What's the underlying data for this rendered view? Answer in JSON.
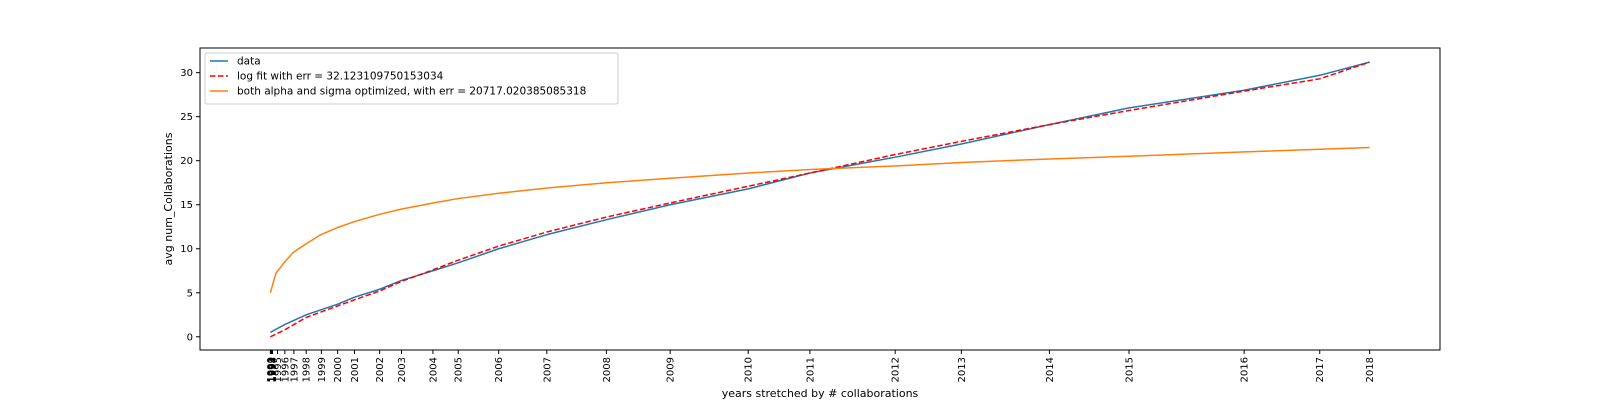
{
  "chart_data": {
    "type": "line",
    "xlabel": "years stretched by # collaborations",
    "ylabel": "avg num_Collaborations",
    "ylim": [
      -1.5,
      32.8
    ],
    "yticks": [
      0,
      5,
      10,
      15,
      20,
      25,
      30
    ],
    "xlim": [
      -0.064,
      1.064
    ],
    "grid": false,
    "legend_position": "top-left",
    "x_ticks": [
      {
        "label": "1990",
        "x": 0.0
      },
      {
        "label": "1991",
        "x": 0.0005
      },
      {
        "label": "1992",
        "x": 0.001
      },
      {
        "label": "1993",
        "x": 0.0015
      },
      {
        "label": "1994",
        "x": 0.002
      },
      {
        "label": "1995",
        "x": 0.0065
      },
      {
        "label": "1996",
        "x": 0.0132
      },
      {
        "label": "1997",
        "x": 0.0214
      },
      {
        "label": "1998",
        "x": 0.0326
      },
      {
        "label": "1999",
        "x": 0.0464
      },
      {
        "label": "2000",
        "x": 0.0612
      },
      {
        "label": "2001",
        "x": 0.0765
      },
      {
        "label": "2002",
        "x": 0.0994
      },
      {
        "label": "2003",
        "x": 0.1193
      },
      {
        "label": "2004",
        "x": 0.1479
      },
      {
        "label": "2005",
        "x": 0.1709
      },
      {
        "label": "2006",
        "x": 0.2077
      },
      {
        "label": "2007",
        "x": 0.2515
      },
      {
        "label": "2008",
        "x": 0.3057
      },
      {
        "label": "2009",
        "x": 0.3637
      },
      {
        "label": "2010",
        "x": 0.4347
      },
      {
        "label": "2011",
        "x": 0.4908
      },
      {
        "label": "2012",
        "x": 0.5684
      },
      {
        "label": "2013",
        "x": 0.6286
      },
      {
        "label": "2014",
        "x": 0.7087
      },
      {
        "label": "2015",
        "x": 0.7811
      },
      {
        "label": "2016",
        "x": 0.8858
      },
      {
        "label": "2017",
        "x": 0.9546
      },
      {
        "label": "2018",
        "x": 1.0
      }
    ],
    "series": [
      {
        "name": "data",
        "color": "#1f77b4",
        "style": "solid",
        "points": [
          [
            0.0,
            0.5
          ],
          [
            0.0132,
            1.4
          ],
          [
            0.0326,
            2.5
          ],
          [
            0.0612,
            3.7
          ],
          [
            0.0765,
            4.5
          ],
          [
            0.0994,
            5.4
          ],
          [
            0.1193,
            6.4
          ],
          [
            0.1479,
            7.5
          ],
          [
            0.1709,
            8.4
          ],
          [
            0.2077,
            10.0
          ],
          [
            0.2515,
            11.6
          ],
          [
            0.3057,
            13.3
          ],
          [
            0.3637,
            15.0
          ],
          [
            0.4347,
            16.8
          ],
          [
            0.4908,
            18.6
          ],
          [
            0.5684,
            20.4
          ],
          [
            0.6286,
            21.9
          ],
          [
            0.7087,
            24.1
          ],
          [
            0.7811,
            26.0
          ],
          [
            0.8858,
            28.0
          ],
          [
            0.9546,
            29.7
          ],
          [
            1.0,
            31.2
          ]
        ]
      },
      {
        "name": "log fit with err = 32.123109750153034",
        "color": "#ff0000",
        "style": "dashed",
        "points": [
          [
            0.0,
            0.0
          ],
          [
            0.0132,
            0.8
          ],
          [
            0.0326,
            2.2
          ],
          [
            0.0612,
            3.5
          ],
          [
            0.0765,
            4.2
          ],
          [
            0.0994,
            5.2
          ],
          [
            0.1193,
            6.3
          ],
          [
            0.1479,
            7.6
          ],
          [
            0.1709,
            8.7
          ],
          [
            0.2077,
            10.3
          ],
          [
            0.2515,
            11.9
          ],
          [
            0.3057,
            13.6
          ],
          [
            0.3637,
            15.2
          ],
          [
            0.4347,
            17.1
          ],
          [
            0.4908,
            18.6
          ],
          [
            0.5684,
            20.7
          ],
          [
            0.6286,
            22.2
          ],
          [
            0.7087,
            24.1
          ],
          [
            0.7811,
            25.7
          ],
          [
            0.8858,
            27.9
          ],
          [
            0.9546,
            29.3
          ],
          [
            1.0,
            31.2
          ]
        ]
      },
      {
        "name": "both alpha and sigma optimized, with err = 20717.020385085318",
        "color": "#ff7f0e",
        "style": "solid",
        "points": [
          [
            0.0,
            5.0
          ],
          [
            0.005,
            7.2
          ],
          [
            0.013,
            8.5
          ],
          [
            0.021,
            9.6
          ],
          [
            0.033,
            10.6
          ],
          [
            0.046,
            11.6
          ],
          [
            0.061,
            12.4
          ],
          [
            0.077,
            13.1
          ],
          [
            0.099,
            13.9
          ],
          [
            0.119,
            14.5
          ],
          [
            0.148,
            15.2
          ],
          [
            0.171,
            15.7
          ],
          [
            0.208,
            16.3
          ],
          [
            0.252,
            16.9
          ],
          [
            0.306,
            17.5
          ],
          [
            0.364,
            18.0
          ],
          [
            0.435,
            18.6
          ],
          [
            0.491,
            19.0
          ],
          [
            0.568,
            19.4
          ],
          [
            0.629,
            19.8
          ],
          [
            0.709,
            20.2
          ],
          [
            0.781,
            20.5
          ],
          [
            0.886,
            21.0
          ],
          [
            0.955,
            21.3
          ],
          [
            1.0,
            21.5
          ]
        ]
      }
    ]
  }
}
